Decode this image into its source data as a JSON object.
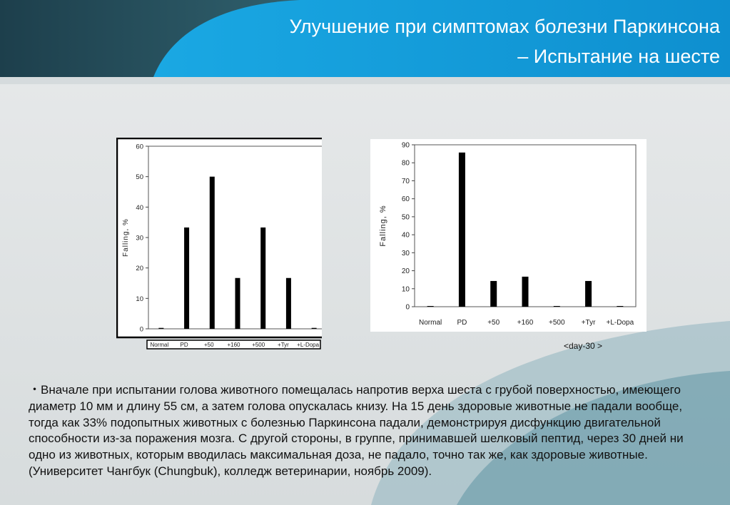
{
  "slide": {
    "title_line1": "Улучшение при симптомах болезни Паркинсона",
    "title_line2": "– Испытание на шесте",
    "caption": "<day-30 >",
    "body_bullet": "・Вначале при испытании голова животного помещалась напротив верха шеста с грубой поверхностью, имеющего диаметр 10 мм и длину 55 см, а затем голова опускалась книзу. На 15 день здоровые животные не падали вообще, тогда как 33% подопытных животных с болезнью Паркинсона падали, демонстрируя дисфункцию двигательной способности из-за поражения мозга. С другой стороны, в группе, принимавшей шелковый пептид, через 30 дней ни одно из животных, которым вводилась максимальная доза, не падало, точно так же, как здоровые животные.",
    "body_note": " (Университет Чангбук (Chungbuk), колледж ветеринарии, ноябрь 2009)."
  },
  "chart_data": [
    {
      "type": "bar",
      "categories": [
        "Normal",
        "PD",
        "+50",
        "+160",
        "+500",
        "+Tyr",
        "+L-Dopa"
      ],
      "values": [
        0.3,
        33.3,
        50,
        16.7,
        33.3,
        16.7,
        0.3
      ],
      "ylabel": "Falling, %",
      "ylim": [
        0,
        60
      ],
      "yticks": [
        0,
        10,
        20,
        30,
        40,
        50,
        60
      ],
      "grid": false
    },
    {
      "type": "bar",
      "categories": [
        "Normal",
        "PD",
        "+50",
        "+160",
        "+500",
        "+Tyr",
        "+L-Dopa"
      ],
      "values": [
        0.4,
        85.7,
        14.3,
        16.7,
        0.4,
        14.3,
        0.4
      ],
      "ylabel": "Falling, %",
      "ylim": [
        0,
        90
      ],
      "yticks": [
        0,
        10,
        20,
        30,
        40,
        50,
        60,
        70,
        80,
        90
      ],
      "grid": false
    }
  ],
  "colors": {
    "header_dark": "#163a4a",
    "header_blue": "#18a6e0",
    "bar": "#000000"
  }
}
